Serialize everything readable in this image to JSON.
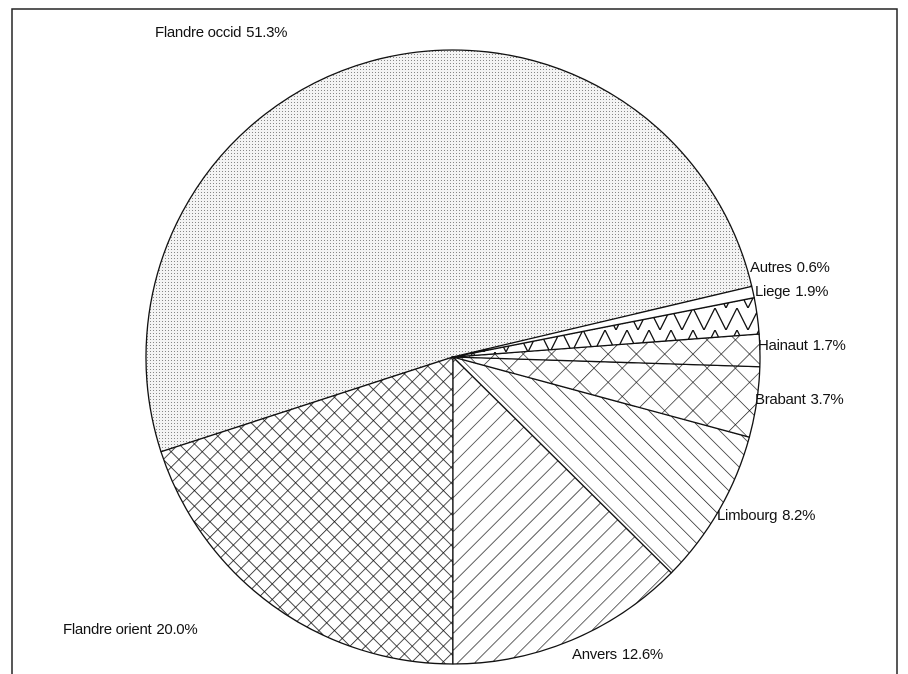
{
  "chart_data": {
    "type": "pie",
    "categories": [
      "Flandre occid",
      "Flandre orient",
      "Anvers",
      "Limbourg",
      "Brabant",
      "Hainaut",
      "Liege",
      "Autres"
    ],
    "values": [
      51.3,
      20.0,
      12.6,
      8.2,
      3.7,
      1.7,
      1.9,
      0.6
    ],
    "value_labels": [
      "51.3%",
      "20.0%",
      "12.6%",
      "8.2%",
      "3.7%",
      "1.7%",
      "1.9%",
      "0.6%"
    ]
  }
}
